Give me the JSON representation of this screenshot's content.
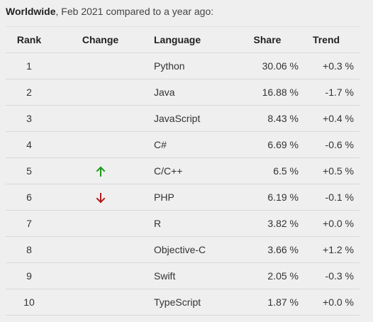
{
  "caption": {
    "bold": "Worldwide",
    "rest": ", Feb 2021 compared to a year ago:"
  },
  "table": {
    "headers": {
      "rank": "Rank",
      "change": "Change",
      "language": "Language",
      "share": "Share",
      "trend": "Trend"
    },
    "rows": [
      {
        "rank": "1",
        "change": "",
        "language": "Python",
        "share": "30.06 %",
        "trend": "+0.3 %"
      },
      {
        "rank": "2",
        "change": "",
        "language": "Java",
        "share": "16.88 %",
        "trend": "-1.7 %"
      },
      {
        "rank": "3",
        "change": "",
        "language": "JavaScript",
        "share": "8.43 %",
        "trend": "+0.4 %"
      },
      {
        "rank": "4",
        "change": "",
        "language": "C#",
        "share": "6.69 %",
        "trend": "-0.6 %"
      },
      {
        "rank": "5",
        "change": "up",
        "language": "C/C++",
        "share": "6.5 %",
        "trend": "+0.5 %"
      },
      {
        "rank": "6",
        "change": "down",
        "language": "PHP",
        "share": "6.19 %",
        "trend": "-0.1 %"
      },
      {
        "rank": "7",
        "change": "",
        "language": "R",
        "share": "3.82 %",
        "trend": "+0.0 %"
      },
      {
        "rank": "8",
        "change": "",
        "language": "Objective-C",
        "share": "3.66 %",
        "trend": "+1.2 %"
      },
      {
        "rank": "9",
        "change": "",
        "language": "Swift",
        "share": "2.05 %",
        "trend": "-0.3 %"
      },
      {
        "rank": "10",
        "change": "",
        "language": "TypeScript",
        "share": "1.87 %",
        "trend": "+0.0 %"
      }
    ]
  },
  "icons": {
    "up": {
      "name": "arrow-up-icon",
      "color": "#1a9a1a"
    },
    "down": {
      "name": "arrow-down-icon",
      "color": "#b01c1c"
    }
  }
}
